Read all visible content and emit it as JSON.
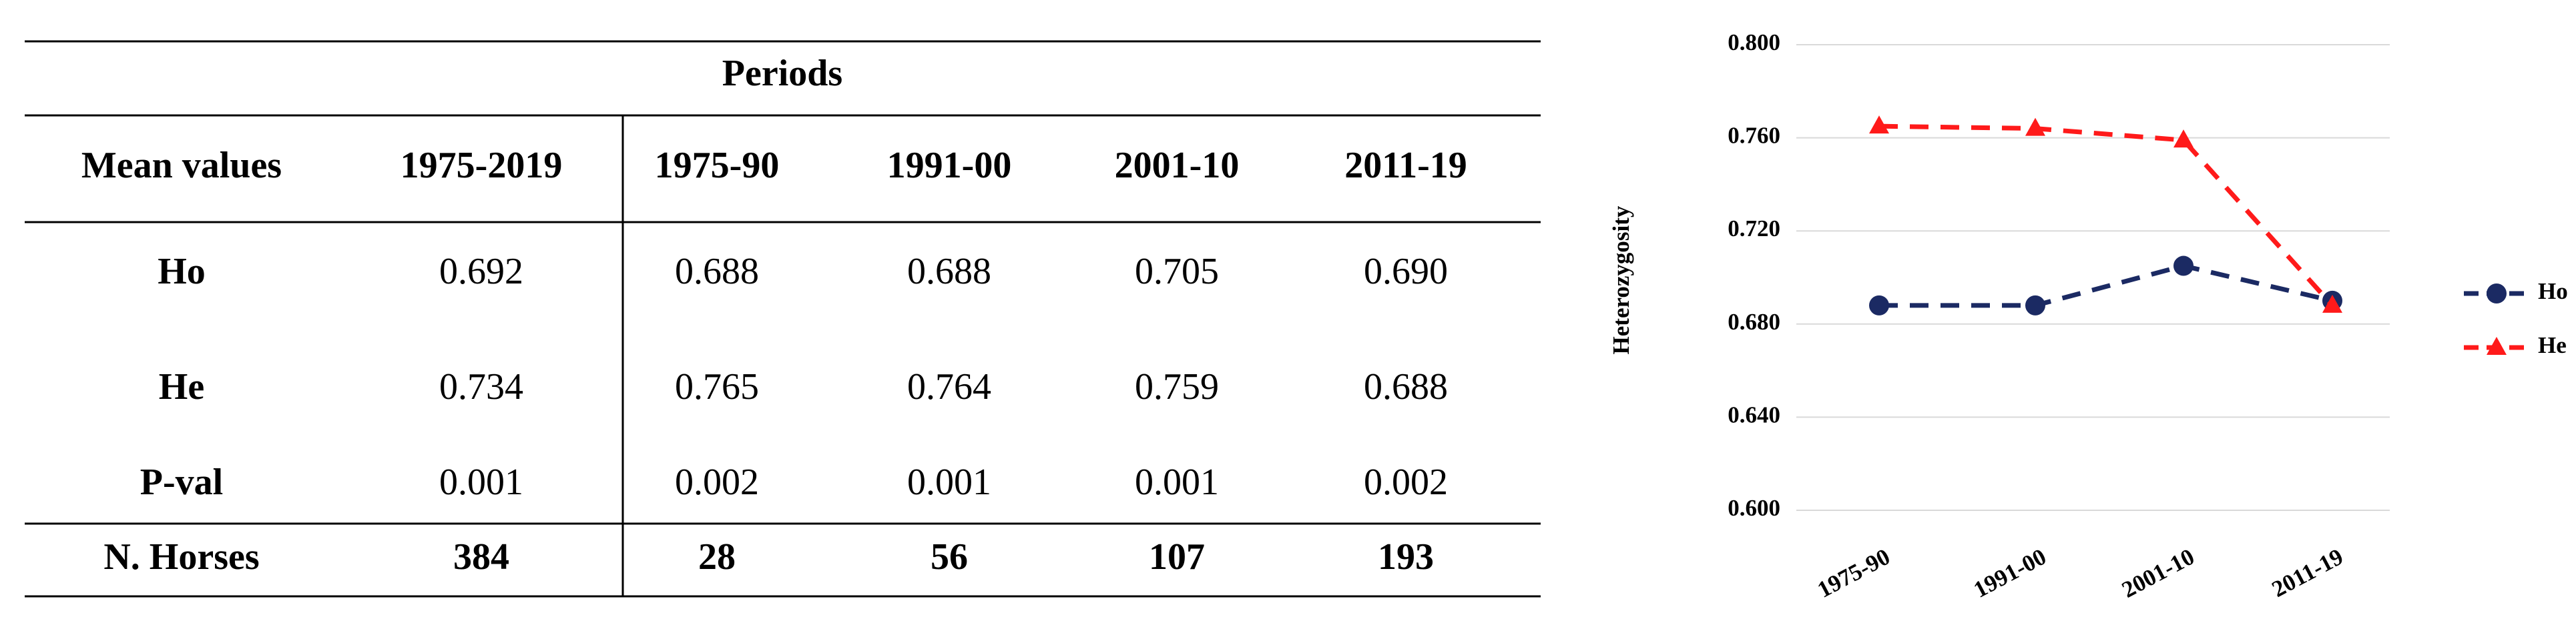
{
  "table": {
    "group_header": "Periods",
    "header": [
      "Mean values",
      "1975-2019",
      "1975-90",
      "1991-00",
      "2001-10",
      "2011-19"
    ],
    "rows": [
      [
        "Ho",
        "0.692",
        "0.688",
        "0.688",
        "0.705",
        "0.690"
      ],
      [
        "He",
        "0.734",
        "0.765",
        "0.764",
        "0.759",
        "0.688"
      ],
      [
        "P-val",
        "0.001",
        "0.002",
        "0.001",
        "0.001",
        "0.002"
      ],
      [
        "N. Horses",
        "384",
        "28",
        "56",
        "107",
        "193"
      ]
    ]
  },
  "chart_data": {
    "type": "line",
    "y_label": "Heterozygosity",
    "categories": [
      "1975-90",
      "1991-00",
      "2001-10",
      "2011-19"
    ],
    "series": [
      {
        "name": "Ho",
        "color": "#1b2a63",
        "marker": "circle",
        "dashed": true,
        "values": [
          0.688,
          0.688,
          0.705,
          0.69
        ]
      },
      {
        "name": "He",
        "color": "#ff1a1a",
        "marker": "triangle",
        "dashed": true,
        "values": [
          0.765,
          0.764,
          0.759,
          0.688
        ]
      }
    ],
    "ylim": [
      0.6,
      0.8
    ],
    "yticks": [
      {
        "value": 0.6,
        "label": "0.600"
      },
      {
        "value": 0.64,
        "label": "0.640"
      },
      {
        "value": 0.68,
        "label": "0.680"
      },
      {
        "value": 0.72,
        "label": "0.720"
      },
      {
        "value": 0.76,
        "label": "0.760"
      },
      {
        "value": 0.8,
        "label": "0.800"
      }
    ],
    "grid": true,
    "legend": "right"
  }
}
